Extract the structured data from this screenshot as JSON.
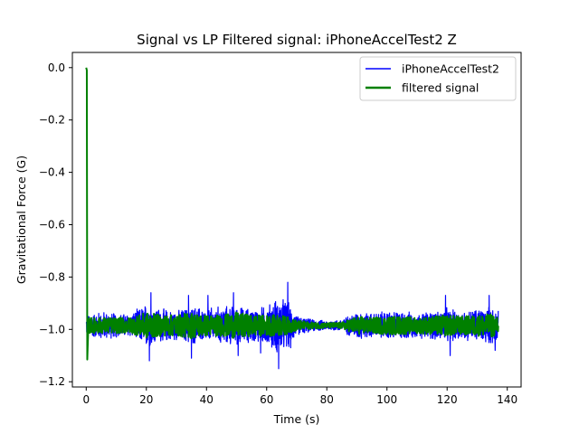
{
  "chart_data": {
    "type": "line",
    "title": "Signal vs LP Filtered signal: iPhoneAccelTest2 Z",
    "xlabel": "Time (s)",
    "ylabel": "Gravitational Force (G)",
    "xlim": [
      -4.6,
      144.6
    ],
    "ylim": [
      -1.22,
      0.058
    ],
    "xticks": [
      0,
      20,
      40,
      60,
      80,
      100,
      120,
      140
    ],
    "xtick_labels": [
      "0",
      "20",
      "40",
      "60",
      "80",
      "100",
      "120",
      "140"
    ],
    "yticks": [
      0.0,
      -0.2,
      -0.4,
      -0.6,
      -0.8,
      -1.0,
      -1.2
    ],
    "ytick_labels": [
      "0.0",
      "−0.2",
      "−0.4",
      "−0.6",
      "−0.8",
      "−1.0",
      "−1.2"
    ],
    "grid": false,
    "legend_position": "top-right",
    "duration_s": 137,
    "series": [
      {
        "name": "iPhoneAccelTest2",
        "color": "#0000ff",
        "baseline": -0.985,
        "envelope": [
          [
            0,
            0.04
          ],
          [
            5,
            0.06
          ],
          [
            10,
            0.05
          ],
          [
            15,
            0.05
          ],
          [
            20,
            0.09
          ],
          [
            25,
            0.07
          ],
          [
            30,
            0.06
          ],
          [
            35,
            0.08
          ],
          [
            40,
            0.07
          ],
          [
            45,
            0.08
          ],
          [
            50,
            0.08
          ],
          [
            55,
            0.07
          ],
          [
            60,
            0.08
          ],
          [
            64,
            0.12
          ],
          [
            67,
            0.1
          ],
          [
            70,
            0.04
          ],
          [
            75,
            0.025
          ],
          [
            80,
            0.02
          ],
          [
            85,
            0.025
          ],
          [
            90,
            0.06
          ],
          [
            95,
            0.05
          ],
          [
            100,
            0.06
          ],
          [
            105,
            0.06
          ],
          [
            110,
            0.05
          ],
          [
            115,
            0.06
          ],
          [
            120,
            0.07
          ],
          [
            125,
            0.06
          ],
          [
            130,
            0.07
          ],
          [
            135,
            0.08
          ],
          [
            137,
            0.06
          ]
        ],
        "spikes": [
          {
            "x": 21.5,
            "y": -0.86
          },
          {
            "x": 21.0,
            "y": -1.12
          },
          {
            "x": 34.0,
            "y": -0.87
          },
          {
            "x": 35.0,
            "y": -1.11
          },
          {
            "x": 40.5,
            "y": -0.87
          },
          {
            "x": 49.0,
            "y": -0.86
          },
          {
            "x": 50.5,
            "y": -1.1
          },
          {
            "x": 58.0,
            "y": -1.09
          },
          {
            "x": 64.0,
            "y": -1.15
          },
          {
            "x": 67.0,
            "y": -0.82
          },
          {
            "x": 68.0,
            "y": -1.07
          },
          {
            "x": 119.5,
            "y": -0.87
          },
          {
            "x": 121.0,
            "y": -1.1
          },
          {
            "x": 134.0,
            "y": -0.87
          },
          {
            "x": 136.0,
            "y": -1.08
          }
        ]
      },
      {
        "name": "filtered signal",
        "color": "#008000",
        "start_value": 0.0,
        "dip_min": -1.115,
        "baseline": -0.985,
        "envelope": [
          [
            0,
            0.03
          ],
          [
            5,
            0.03
          ],
          [
            10,
            0.03
          ],
          [
            15,
            0.03
          ],
          [
            20,
            0.05
          ],
          [
            25,
            0.04
          ],
          [
            30,
            0.04
          ],
          [
            35,
            0.05
          ],
          [
            40,
            0.04
          ],
          [
            45,
            0.04
          ],
          [
            50,
            0.05
          ],
          [
            55,
            0.04
          ],
          [
            60,
            0.04
          ],
          [
            65,
            0.04
          ],
          [
            70,
            0.02
          ],
          [
            75,
            0.012
          ],
          [
            80,
            0.01
          ],
          [
            85,
            0.012
          ],
          [
            90,
            0.035
          ],
          [
            95,
            0.03
          ],
          [
            100,
            0.035
          ],
          [
            105,
            0.035
          ],
          [
            110,
            0.03
          ],
          [
            115,
            0.035
          ],
          [
            120,
            0.04
          ],
          [
            125,
            0.035
          ],
          [
            130,
            0.04
          ],
          [
            135,
            0.045
          ],
          [
            137,
            0.03
          ]
        ]
      }
    ]
  }
}
